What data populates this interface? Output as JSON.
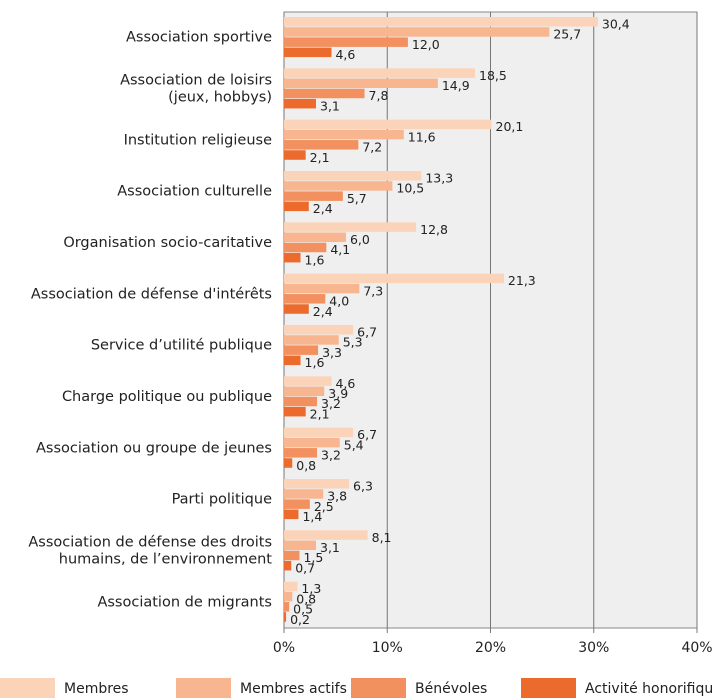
{
  "chart_data": {
    "type": "bar",
    "orientation": "horizontal",
    "categories": [
      [
        "Association sportive"
      ],
      [
        "Association de loisirs",
        "(jeux, hobbys)"
      ],
      [
        "Institution religieuse"
      ],
      [
        "Association culturelle"
      ],
      [
        "Organisation socio-caritative"
      ],
      [
        "Association de défense d'intérêts"
      ],
      [
        "Service d’utilité publique"
      ],
      [
        "Charge politique ou publique"
      ],
      [
        "Association ou groupe de jeunes"
      ],
      [
        "Parti politique"
      ],
      [
        "Association de défense des droits",
        "humains, de l’environnement"
      ],
      [
        "Association de migrants"
      ]
    ],
    "series": [
      {
        "name": "Membres",
        "color": "#fbd3b8",
        "values": [
          30.4,
          18.5,
          20.1,
          13.3,
          12.8,
          21.3,
          6.7,
          4.6,
          6.7,
          6.3,
          8.1,
          1.3
        ],
        "value_labels": [
          "30,4",
          "18,5",
          "20,1",
          "13,3",
          "12,8",
          "21,3",
          "6,7",
          "4,6",
          "6,7",
          "6,3",
          "8,1",
          "1,3"
        ]
      },
      {
        "name": "Membres actifs",
        "color": "#f8b690",
        "values": [
          25.7,
          14.9,
          11.6,
          10.5,
          6.0,
          7.3,
          5.3,
          3.9,
          5.4,
          3.8,
          3.1,
          0.8
        ],
        "value_labels": [
          "25,7",
          "14,9",
          "11,6",
          "10,5",
          "6,0",
          "7,3",
          "5,3",
          "3,9",
          "5,4",
          "3,8",
          "3,1",
          "0,8"
        ]
      },
      {
        "name": "Bénévoles",
        "color": "#f2915f",
        "values": [
          12.0,
          7.8,
          7.2,
          5.7,
          4.1,
          4.0,
          3.3,
          3.2,
          3.2,
          2.5,
          1.5,
          0.5
        ],
        "value_labels": [
          "12,0",
          "7,8",
          "7,2",
          "5,7",
          "4,1",
          "4,0",
          "3,3",
          "3,2",
          "3,2",
          "2,5",
          "1,5",
          "0,5"
        ]
      },
      {
        "name": "Activité honorifique",
        "color": "#ec6a2c",
        "values": [
          4.6,
          3.1,
          2.1,
          2.4,
          1.6,
          2.4,
          1.6,
          2.1,
          0.8,
          1.4,
          0.7,
          0.2
        ],
        "value_labels": [
          "4,6",
          "3,1",
          "2,1",
          "2,4",
          "1,6",
          "2,4",
          "1,6",
          "2,1",
          "0,8",
          "1,4",
          "0,7",
          "0,2"
        ]
      }
    ],
    "xlim": [
      0,
      40
    ],
    "xticks": [
      {
        "value": 0,
        "label": "0%"
      },
      {
        "value": 10,
        "label": "10%"
      },
      {
        "value": 20,
        "label": "20%"
      },
      {
        "value": 30,
        "label": "30%"
      },
      {
        "value": 40,
        "label": "40%"
      }
    ],
    "grid": true,
    "legend": "bottom"
  }
}
